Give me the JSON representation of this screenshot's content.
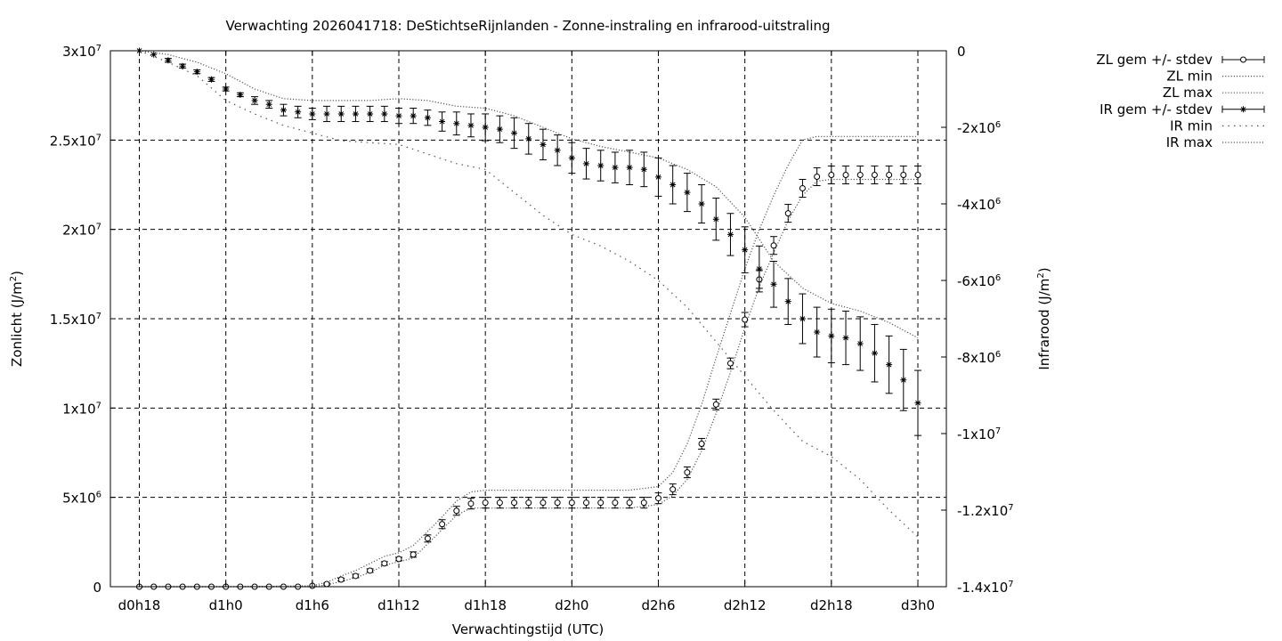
{
  "chart_data": {
    "type": "line",
    "title": "Verwachting 2026041718: DeStichtseRijnlanden - Zonne-instraling en infrarood-uitstraling",
    "xlabel": "Verwachtingstijd (UTC)",
    "ylabel": "Zonlicht (J/m²)",
    "y2label": "Infrarood (J/m²)",
    "grid": true,
    "legend_position": "outside-right",
    "x_unit": "hours since d0h18",
    "xlim": [
      0,
      54
    ],
    "ylim": [
      0,
      30000000
    ],
    "y2lim": [
      -14000000,
      0
    ],
    "x_ticks": [
      {
        "x": 0,
        "label": "d0h18"
      },
      {
        "x": 6,
        "label": "d1h0"
      },
      {
        "x": 12,
        "label": "d1h6"
      },
      {
        "x": 18,
        "label": "d1h12"
      },
      {
        "x": 24,
        "label": "d1h18"
      },
      {
        "x": 30,
        "label": "d2h0"
      },
      {
        "x": 36,
        "label": "d2h6"
      },
      {
        "x": 42,
        "label": "d2h12"
      },
      {
        "x": 48,
        "label": "d2h18"
      },
      {
        "x": 54,
        "label": "d3h0"
      }
    ],
    "y_ticks": [
      {
        "v": 0,
        "base": "0",
        "exp": ""
      },
      {
        "v": 5000000,
        "base": "5x10",
        "exp": "6"
      },
      {
        "v": 10000000,
        "base": "1x10",
        "exp": "7"
      },
      {
        "v": 15000000,
        "base": "1.5x10",
        "exp": "7"
      },
      {
        "v": 20000000,
        "base": "2x10",
        "exp": "7"
      },
      {
        "v": 25000000,
        "base": "2.5x10",
        "exp": "7"
      },
      {
        "v": 30000000,
        "base": "3x10",
        "exp": "7"
      }
    ],
    "y2_ticks": [
      {
        "v": 0,
        "base": "0",
        "exp": ""
      },
      {
        "v": -2000000,
        "base": "-2x10",
        "exp": "6"
      },
      {
        "v": -4000000,
        "base": "-4x10",
        "exp": "6"
      },
      {
        "v": -6000000,
        "base": "-6x10",
        "exp": "6"
      },
      {
        "v": -8000000,
        "base": "-8x10",
        "exp": "6"
      },
      {
        "v": -10000000,
        "base": "-1x10",
        "exp": "7"
      },
      {
        "v": -12000000,
        "base": "-1.2x10",
        "exp": "7"
      },
      {
        "v": -14000000,
        "base": "-1.4x10",
        "exp": "7"
      }
    ],
    "series": [
      {
        "name": "ZL gem +/- stdev",
        "axis": "y1",
        "style": "errorbar-circle",
        "x": [
          0,
          1,
          2,
          3,
          4,
          5,
          6,
          7,
          8,
          9,
          10,
          11,
          12,
          13,
          14,
          15,
          16,
          17,
          18,
          19,
          20,
          21,
          22,
          23,
          24,
          25,
          26,
          27,
          28,
          29,
          30,
          31,
          32,
          33,
          34,
          35,
          36,
          37,
          38,
          39,
          40,
          41,
          42,
          43,
          44,
          45,
          46,
          47,
          48,
          49,
          50,
          51,
          52,
          53,
          54
        ],
        "y": [
          0,
          0,
          0,
          0,
          0,
          0,
          0,
          0,
          0,
          0,
          0,
          0,
          50000,
          150000,
          400000,
          600000,
          900000,
          1300000,
          1550000,
          1800000,
          2700000,
          3500000,
          4250000,
          4650000,
          4700000,
          4700000,
          4700000,
          4700000,
          4700000,
          4700000,
          4700000,
          4700000,
          4700000,
          4700000,
          4700000,
          4700000,
          4950000,
          5450000,
          6400000,
          8000000,
          10200000,
          12500000,
          14950000,
          17200000,
          19100000,
          20900000,
          22300000,
          22950000,
          23050000,
          23050000,
          23050000,
          23050000,
          23050000,
          23050000,
          23050000
        ],
        "stdev": [
          0,
          0,
          0,
          0,
          0,
          0,
          0,
          0,
          0,
          0,
          0,
          0,
          20000,
          50000,
          80000,
          100000,
          100000,
          100000,
          100000,
          150000,
          200000,
          250000,
          250000,
          300000,
          300000,
          300000,
          300000,
          300000,
          300000,
          300000,
          300000,
          300000,
          300000,
          300000,
          300000,
          300000,
          300000,
          300000,
          300000,
          300000,
          300000,
          300000,
          400000,
          500000,
          500000,
          500000,
          500000,
          500000,
          500000,
          500000,
          500000,
          500000,
          500000,
          500000,
          500000
        ]
      },
      {
        "name": "ZL min",
        "axis": "y1",
        "style": "dotted",
        "x": [
          0,
          6,
          12,
          13,
          14,
          15,
          16,
          17,
          18,
          19,
          20,
          21,
          22,
          23,
          24,
          26,
          28,
          30,
          32,
          34,
          36,
          37,
          38,
          39,
          40,
          41,
          42,
          43,
          44,
          45,
          46,
          47,
          48,
          50,
          52,
          54
        ],
        "y": [
          0,
          0,
          0,
          100000,
          300000,
          500000,
          800000,
          1200000,
          1400000,
          1600000,
          2400000,
          3200000,
          4000000,
          4400000,
          4400000,
          4400000,
          4400000,
          4400000,
          4400000,
          4400000,
          4600000,
          5100000,
          6000000,
          7600000,
          9700000,
          12000000,
          14500000,
          16800000,
          18700000,
          20500000,
          21900000,
          22700000,
          22800000,
          22800000,
          22800000,
          22800000
        ]
      },
      {
        "name": "ZL max",
        "axis": "y1",
        "style": "dotted",
        "x": [
          0,
          6,
          12,
          13,
          14,
          15,
          16,
          17,
          18,
          19,
          20,
          21,
          22,
          23,
          24,
          26,
          28,
          30,
          32,
          34,
          36,
          37,
          38,
          39,
          40,
          41,
          42,
          43,
          44,
          45,
          46,
          47,
          48,
          50,
          52,
          54
        ],
        "y": [
          0,
          0,
          50000,
          250000,
          600000,
          900000,
          1300000,
          1700000,
          1900000,
          2300000,
          3100000,
          3900000,
          4800000,
          5300000,
          5400000,
          5400000,
          5400000,
          5400000,
          5400000,
          5400000,
          5600000,
          6400000,
          8000000,
          10200000,
          12800000,
          15300000,
          17800000,
          20000000,
          21900000,
          23600000,
          25000000,
          25200000,
          25200000,
          25200000,
          25200000,
          25200000
        ]
      },
      {
        "name": "IR gem +/- stdev",
        "axis": "y2",
        "style": "errorbar-star",
        "x": [
          0,
          1,
          2,
          3,
          4,
          5,
          6,
          7,
          8,
          9,
          10,
          11,
          12,
          13,
          14,
          15,
          16,
          17,
          18,
          19,
          20,
          21,
          22,
          23,
          24,
          25,
          26,
          27,
          28,
          29,
          30,
          31,
          32,
          33,
          34,
          35,
          36,
          37,
          38,
          39,
          40,
          41,
          42,
          43,
          44,
          45,
          46,
          47,
          48,
          49,
          50,
          51,
          52,
          53,
          54
        ],
        "y": [
          0,
          -100000,
          -250000,
          -400000,
          -550000,
          -750000,
          -1000000,
          -1150000,
          -1300000,
          -1400000,
          -1550000,
          -1600000,
          -1650000,
          -1650000,
          -1650000,
          -1650000,
          -1650000,
          -1650000,
          -1700000,
          -1700000,
          -1750000,
          -1850000,
          -1900000,
          -1950000,
          -2000000,
          -2050000,
          -2150000,
          -2300000,
          -2450000,
          -2600000,
          -2800000,
          -2950000,
          -3000000,
          -3050000,
          -3050000,
          -3100000,
          -3300000,
          -3500000,
          -3700000,
          -4000000,
          -4400000,
          -4800000,
          -5200000,
          -5700000,
          -6100000,
          -6550000,
          -7000000,
          -7350000,
          -7450000,
          -7500000,
          -7650000,
          -7900000,
          -8200000,
          -8600000,
          -9200000
        ],
        "stdev": [
          0,
          0,
          50000,
          50000,
          50000,
          50000,
          50000,
          50000,
          100000,
          100000,
          150000,
          150000,
          150000,
          200000,
          200000,
          200000,
          200000,
          200000,
          200000,
          200000,
          200000,
          250000,
          300000,
          300000,
          350000,
          350000,
          400000,
          400000,
          400000,
          400000,
          400000,
          400000,
          400000,
          400000,
          450000,
          450000,
          500000,
          500000,
          500000,
          500000,
          550000,
          550000,
          600000,
          600000,
          600000,
          600000,
          650000,
          650000,
          700000,
          700000,
          700000,
          750000,
          750000,
          800000,
          850000
        ]
      },
      {
        "name": "IR min",
        "axis": "y2",
        "style": "sparse-dotted",
        "x": [
          0,
          2,
          4,
          6,
          8,
          10,
          12,
          14,
          16,
          18,
          20,
          22,
          24,
          26,
          28,
          30,
          32,
          34,
          36,
          38,
          40,
          42,
          44,
          46,
          48,
          50,
          52,
          54
        ],
        "y": [
          0,
          -300000,
          -650000,
          -1300000,
          -1650000,
          -1950000,
          -2150000,
          -2350000,
          -2400000,
          -2450000,
          -2700000,
          -2950000,
          -3100000,
          -3700000,
          -4300000,
          -4800000,
          -5100000,
          -5500000,
          -6000000,
          -6700000,
          -7600000,
          -8500000,
          -9400000,
          -10200000,
          -10600000,
          -11200000,
          -12000000,
          -12700000
        ]
      },
      {
        "name": "IR max",
        "axis": "y2",
        "style": "dotted",
        "x": [
          0,
          2,
          4,
          6,
          8,
          10,
          12,
          14,
          16,
          18,
          20,
          22,
          24,
          26,
          28,
          30,
          32,
          34,
          36,
          38,
          40,
          42,
          44,
          46,
          48,
          50,
          52,
          54
        ],
        "y": [
          0,
          -100000,
          -300000,
          -600000,
          -1000000,
          -1250000,
          -1300000,
          -1300000,
          -1300000,
          -1250000,
          -1300000,
          -1450000,
          -1500000,
          -1700000,
          -2000000,
          -2300000,
          -2500000,
          -2650000,
          -2800000,
          -3100000,
          -3550000,
          -4350000,
          -5500000,
          -6200000,
          -6600000,
          -6800000,
          -7100000,
          -7500000
        ]
      }
    ]
  }
}
